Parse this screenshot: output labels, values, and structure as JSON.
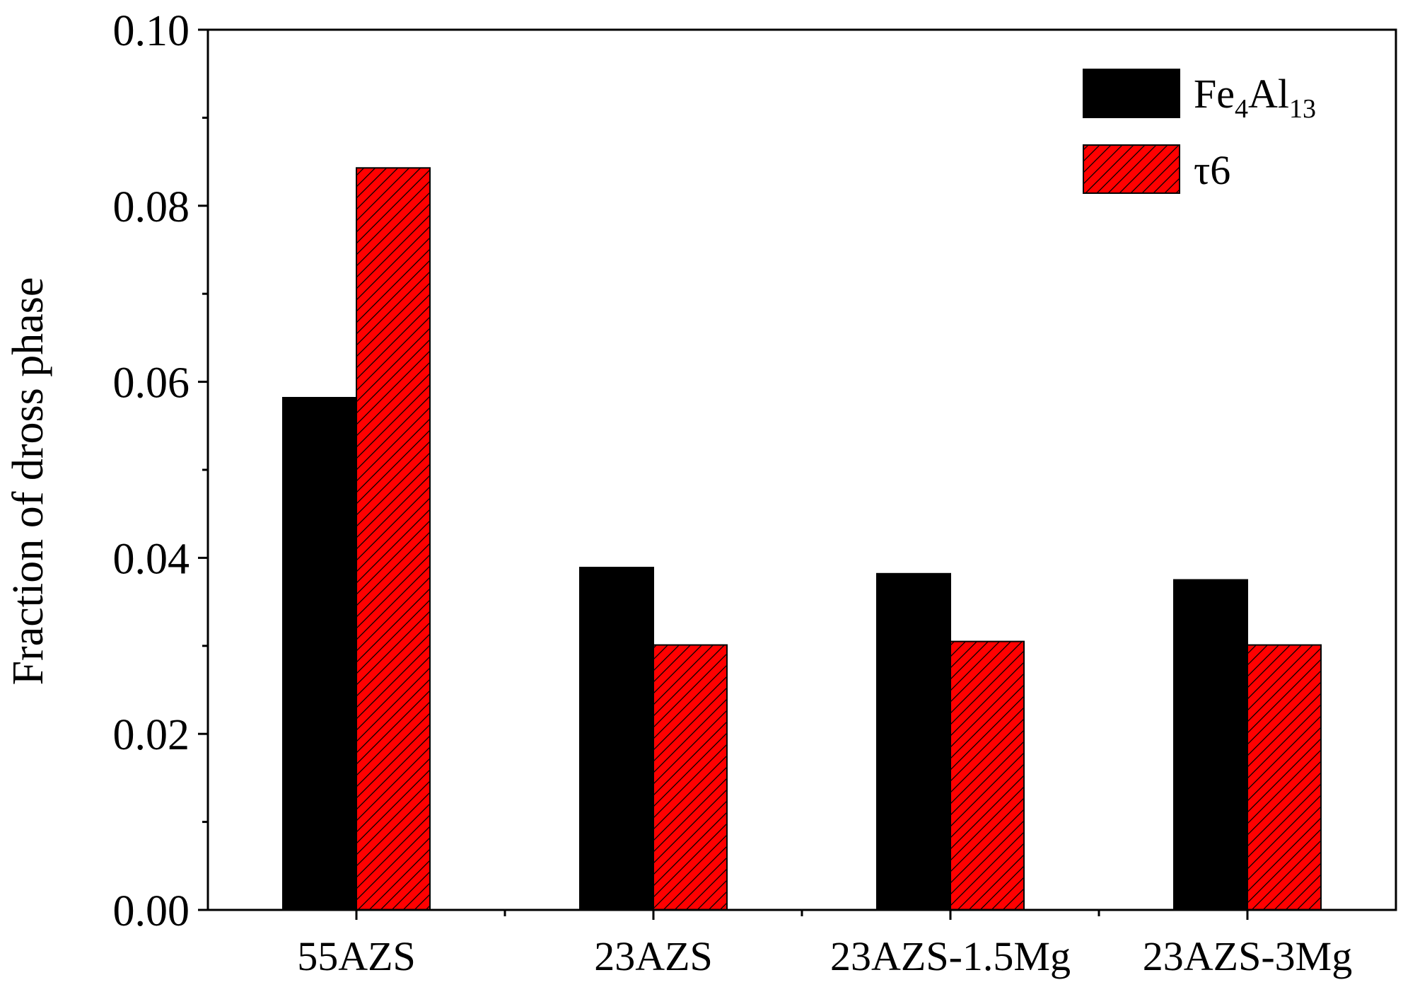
{
  "chart_data": {
    "type": "bar",
    "title": "",
    "xlabel": "",
    "ylabel": "Fraction of dross phase",
    "ylim": [
      0,
      0.1
    ],
    "yticks": [
      "0.00",
      "0.02",
      "0.04",
      "0.06",
      "0.08",
      "0.10"
    ],
    "categories": [
      "55AZS",
      "23AZS",
      "23AZS-1.5Mg",
      "23AZS-3Mg"
    ],
    "series": [
      {
        "name_main": "Fe",
        "name_sub1": "4",
        "name_mid": "Al",
        "name_sub2": "13",
        "values": [
          0.0582,
          0.0389,
          0.0382,
          0.0375
        ],
        "color": "#000000",
        "pattern": "solid"
      },
      {
        "name": "τ6",
        "values": [
          0.0843,
          0.0301,
          0.0305,
          0.0301
        ],
        "color": "#ff0000",
        "pattern": "hatch"
      }
    ],
    "legend_position": "top-right",
    "grid": false
  }
}
